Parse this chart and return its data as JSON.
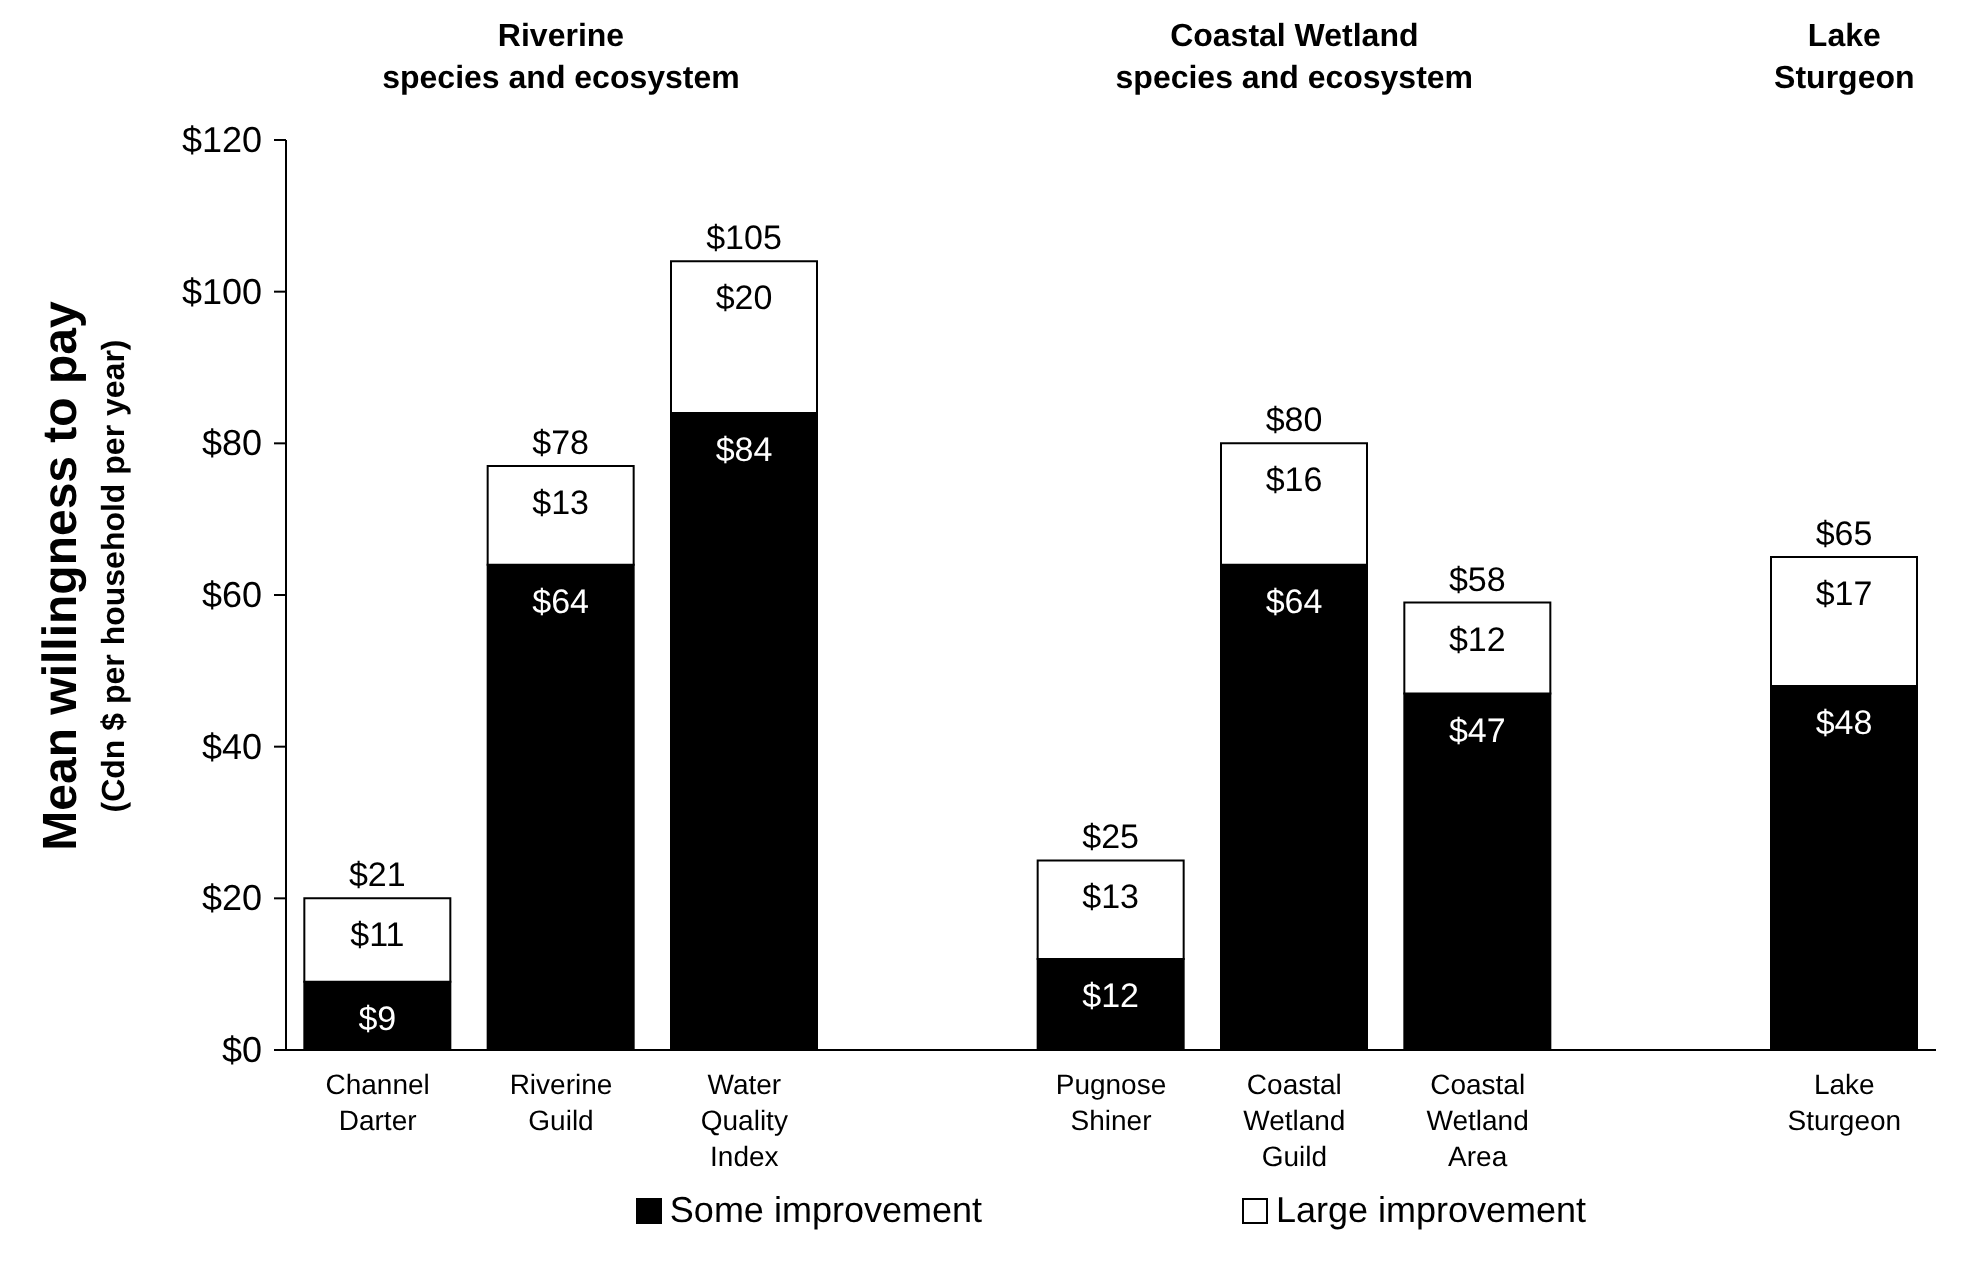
{
  "chart_data": {
    "type": "bar",
    "stacked": true,
    "ylabel": "Mean willingness to pay\n(Cdn $ per household per year)",
    "categories": [
      "Channel Darter",
      "Riverine Guild",
      "Water Quality Index",
      null,
      "Pugnose Shiner",
      "Coastal Wetland Guild",
      "Coastal Wetland Area",
      null,
      "Lake Sturgeon"
    ],
    "series": [
      {
        "name": "Some improvement",
        "color": "#000000",
        "values": [
          9,
          64,
          84,
          null,
          12,
          64,
          47,
          null,
          48
        ],
        "value_labels": [
          "$9",
          "$64",
          "$84",
          null,
          "$12",
          "$64",
          "$47",
          null,
          "$48"
        ]
      },
      {
        "name": "Large improvement",
        "color": "#ffffff",
        "values": [
          11,
          13,
          20,
          null,
          13,
          16,
          12,
          null,
          17
        ],
        "value_labels": [
          "$11",
          "$13",
          "$20",
          null,
          "$13",
          "$16",
          "$12",
          null,
          "$17"
        ]
      }
    ],
    "totals": [
      "$21",
      "$78",
      "$105",
      null,
      "$25",
      "$80",
      "$58",
      null,
      "$65"
    ],
    "ylim": [
      0,
      120
    ],
    "yticks": [
      {
        "value": 0,
        "label": "$0"
      },
      {
        "value": 20,
        "label": "$20"
      },
      {
        "value": 40,
        "label": "$40"
      },
      {
        "value": 60,
        "label": "$60"
      },
      {
        "value": 80,
        "label": "$80"
      },
      {
        "value": 100,
        "label": "$100"
      },
      {
        "value": 120,
        "label": "$120"
      }
    ],
    "annotations": [
      "Riverine\nspecies and ecosystem",
      "Coastal Wetland\nspecies and ecosystem",
      "Lake\nSturgeon"
    ],
    "legend": "bottom"
  }
}
